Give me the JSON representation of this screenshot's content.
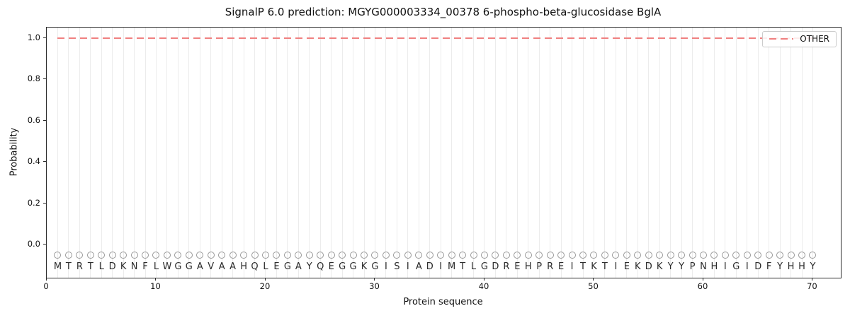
{
  "figure": {
    "background": "#ffffff"
  },
  "legend": {
    "position": "upper-right",
    "line_style": "dashed"
  },
  "colors": {
    "other_line": "#f08080",
    "grid": "#ececec",
    "marker_stroke": "#999999",
    "spine": "#2b2b2b",
    "text": "#111111"
  },
  "chart_data": {
    "type": "line",
    "title": "SignalP 6.0 prediction: MGYG000003334_00378 6-phospho-beta-glucosidase BglA",
    "xlabel": "Protein sequence",
    "ylabel": "Probability",
    "xlim": [
      0,
      72.56
    ],
    "ylim": [
      -0.17,
      1.05
    ],
    "xticks": [
      0,
      10,
      20,
      30,
      40,
      50,
      60,
      70
    ],
    "yticks": [
      0.0,
      0.2,
      0.4,
      0.6,
      0.8,
      1.0
    ],
    "grid": "light vertical gridline at every residue position 1-70",
    "legend_position": "upper right",
    "series": [
      {
        "name": "OTHER",
        "style": "dashed",
        "color": "#f08080",
        "x_start": 1,
        "x_end": 70,
        "constant_value": 1.0,
        "note": "flat dashed line at probability 1.0 across all 70 residues"
      }
    ],
    "residue_markers": {
      "symbol": "open-circle",
      "y": -0.05,
      "color": "#999999",
      "count": 70
    },
    "sequence": "MTRTLDKNFLWGGAVAAHQLEGAYQEGGKGISIADIMTLGDREHPREITKTIEKDKYYPNHIGIDFYHHY"
  }
}
